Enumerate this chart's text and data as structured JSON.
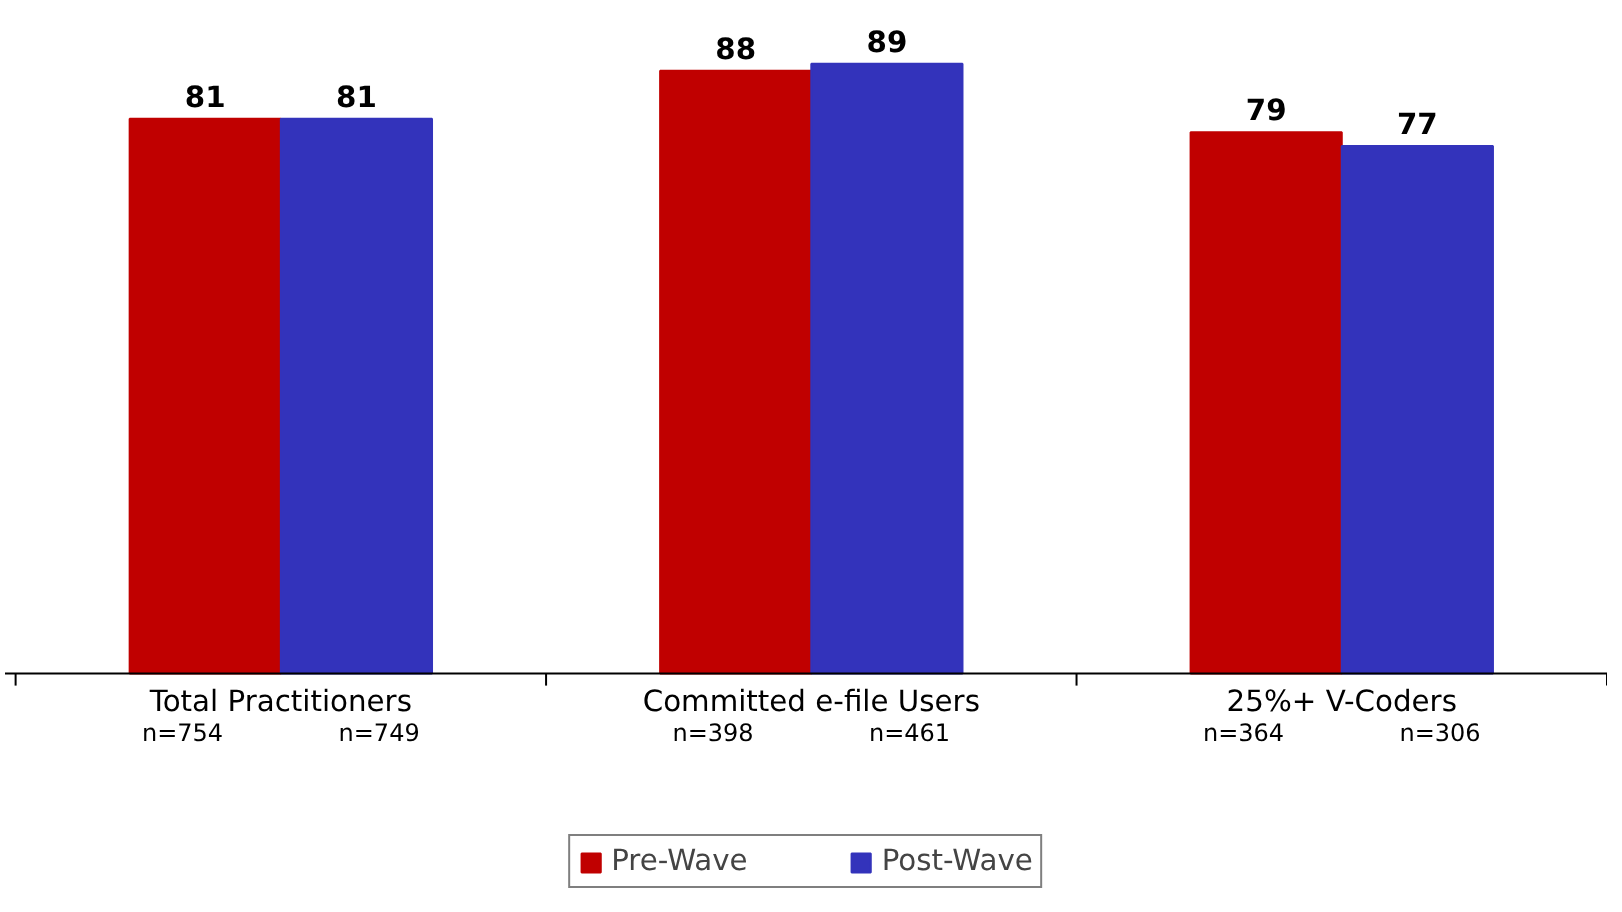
{
  "chart_data": {
    "type": "bar",
    "categories": [
      "Total Practitioners",
      "Committed e-file Users",
      "25%+ V-Coders"
    ],
    "series": [
      {
        "name": "Pre-Wave",
        "color": "#c00000",
        "values": [
          81,
          88,
          79
        ]
      },
      {
        "name": "Post-Wave",
        "color": "#3333bb",
        "values": [
          81,
          89,
          77
        ]
      }
    ],
    "data_labels": true,
    "legend": "bottom",
    "annotations": [
      "n=754",
      "n=749",
      "n=398",
      "n=461",
      "n=364",
      "n=306"
    ]
  }
}
